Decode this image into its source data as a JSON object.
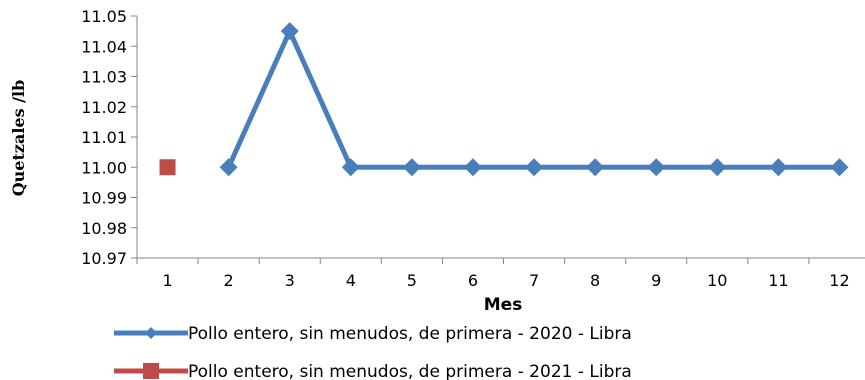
{
  "chart_data": {
    "type": "line",
    "categories": [
      "1",
      "2",
      "3",
      "4",
      "5",
      "6",
      "7",
      "8",
      "9",
      "10",
      "11",
      "12"
    ],
    "xlabel": "Mes",
    "ylabel": "Quetzales /lb",
    "ylim": [
      10.97,
      11.05
    ],
    "yticks": [
      "10.97",
      "10.98",
      "10.99",
      "11.00",
      "11.01",
      "11.02",
      "11.03",
      "11.04",
      "11.05"
    ],
    "grid": false,
    "legend_position": "bottom",
    "series": [
      {
        "name": "Pollo entero, sin menudos, de primera - 2020 - Libra",
        "color": "#4a7ebb",
        "marker": "diamond",
        "values": [
          null,
          11.0,
          11.045,
          11.0,
          11.0,
          11.0,
          11.0,
          11.0,
          11.0,
          11.0,
          11.0,
          11.0
        ]
      },
      {
        "name": "Pollo entero, sin menudos, de primera - 2021 - Libra",
        "color": "#be4b48",
        "marker": "square",
        "values": [
          11.0,
          null,
          null,
          null,
          null,
          null,
          null,
          null,
          null,
          null,
          null,
          null
        ]
      }
    ]
  }
}
